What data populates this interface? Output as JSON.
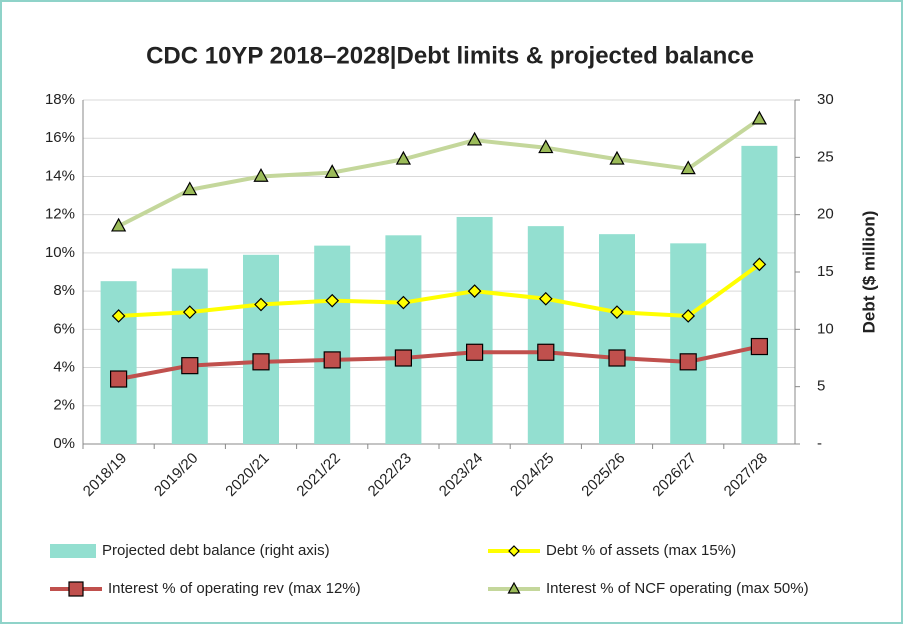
{
  "chart_data": {
    "type": "bar",
    "title": "CDC 10YP 2018–2028|Debt limits & projected balance",
    "y2_label": "Debt ($ million)",
    "categories": [
      "2018/19",
      "2019/20",
      "2020/21",
      "2021/22",
      "2022/23",
      "2023/24",
      "2024/25",
      "2025/26",
      "2026/27",
      "2027/28"
    ],
    "series": [
      {
        "name": "Projected debt balance (right axis)",
        "type": "bar",
        "axis": "y2",
        "color": "#93dfd0",
        "values": [
          14.2,
          15.3,
          16.5,
          17.3,
          18.2,
          19.8,
          19.0,
          18.3,
          17.5,
          26.0
        ]
      },
      {
        "name": "Debt % of assets (max 15%)",
        "type": "line",
        "marker": "diamond",
        "color": "#ffff00",
        "marker_color": "#ffff00",
        "values": [
          6.7,
          6.9,
          7.3,
          7.5,
          7.4,
          8.0,
          7.6,
          6.9,
          6.7,
          9.4
        ]
      },
      {
        "name": "Interest % of operating rev (max 12%)",
        "type": "line",
        "marker": "square",
        "color": "#c0504d",
        "marker_color": "#c0504d",
        "values": [
          3.4,
          4.1,
          4.3,
          4.4,
          4.5,
          4.8,
          4.8,
          4.5,
          4.3,
          5.1
        ]
      },
      {
        "name": "Interest % of NCF operating (max 50%)",
        "type": "line",
        "marker": "triangle",
        "color": "#c4d79b",
        "marker_color": "#9bbb59",
        "values": [
          11.4,
          13.3,
          14.0,
          14.2,
          14.9,
          15.9,
          15.5,
          14.9,
          14.4,
          17.0
        ]
      }
    ],
    "ylim": [
      0,
      18
    ],
    "yticks": [
      {
        "value": 0,
        "label": "0%"
      },
      {
        "value": 2,
        "label": "2%"
      },
      {
        "value": 4,
        "label": "4%"
      },
      {
        "value": 6,
        "label": "6%"
      },
      {
        "value": 8,
        "label": "8%"
      },
      {
        "value": 10,
        "label": "10%"
      },
      {
        "value": 12,
        "label": "12%"
      },
      {
        "value": 14,
        "label": "14%"
      },
      {
        "value": 16,
        "label": "16%"
      },
      {
        "value": 18,
        "label": "18%"
      }
    ],
    "y2lim": [
      0,
      30
    ],
    "y2ticks": [
      {
        "value": 0,
        "label": "-"
      },
      5,
      10,
      15,
      20,
      25,
      30
    ],
    "grid": true
  }
}
